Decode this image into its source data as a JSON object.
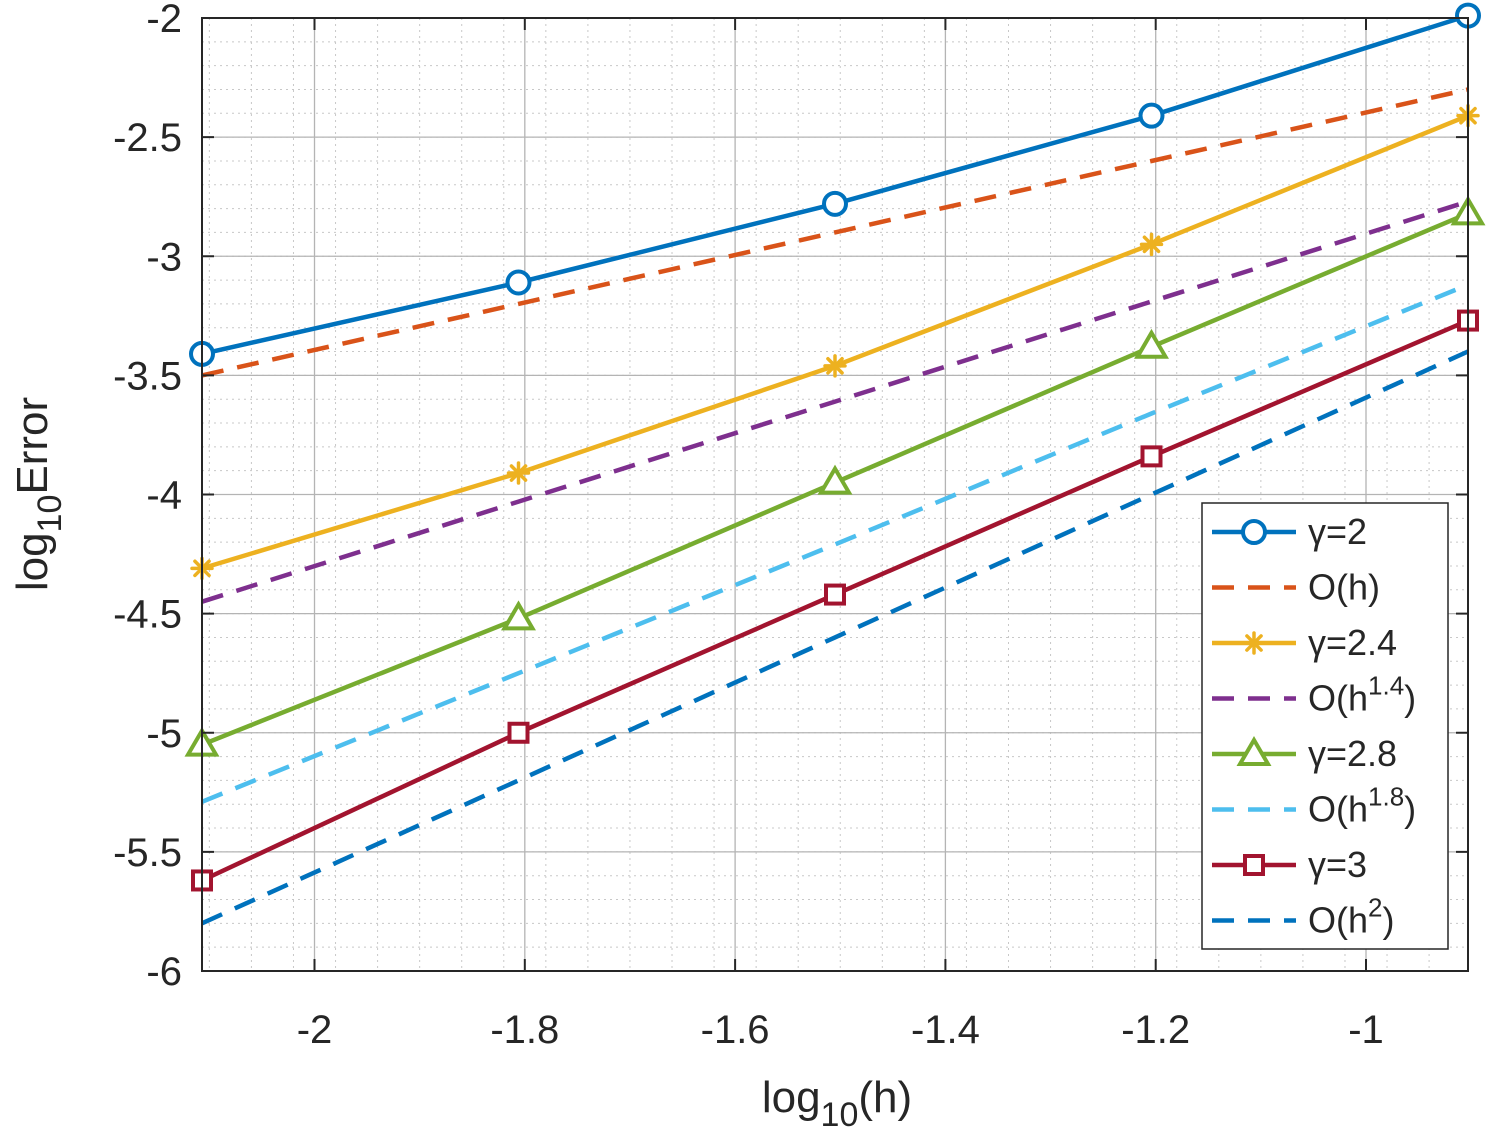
{
  "chart_data": {
    "type": "line",
    "title": "",
    "xlabel": {
      "base": "log",
      "sub": "10",
      "rest": "(h)"
    },
    "ylabel": {
      "base": "log",
      "sub": "10",
      "rest": "Error"
    },
    "xlim": [
      -2.107,
      -0.903
    ],
    "ylim": [
      -6,
      -2
    ],
    "xticks": [
      -2,
      -1.8,
      -1.6,
      -1.4,
      -1.2,
      -1
    ],
    "xtick_labels": [
      "-2",
      "-1.8",
      "-1.6",
      "-1.4",
      "-1.2",
      "-1"
    ],
    "yticks": [
      -6,
      -5.5,
      -5,
      -4.5,
      -4,
      -3.5,
      -3,
      -2.5,
      -2
    ],
    "ytick_labels": [
      "-6",
      "-5.5",
      "-5",
      "-4.5",
      "-4",
      "-3.5",
      "-3",
      "-2.5",
      "-2"
    ],
    "grid": true,
    "minor_grid": true,
    "legend_position": "bottom-right",
    "x": [
      -2.107,
      -1.806,
      -1.505,
      -1.204,
      -0.903
    ],
    "series": [
      {
        "name": "γ=2",
        "label": {
          "main": "γ=2"
        },
        "style": "solid",
        "marker": "circle",
        "color": "#0072BD",
        "values": [
          -3.41,
          -3.11,
          -2.78,
          -2.41,
          -1.99
        ]
      },
      {
        "name": "O(h)",
        "label": {
          "main": "O(h)"
        },
        "style": "dashed",
        "marker": "none",
        "color": "#D95319",
        "values": [
          -3.5,
          -3.2,
          -2.9,
          -2.6,
          -2.3
        ]
      },
      {
        "name": "γ=2.4",
        "label": {
          "main": "γ=2.4"
        },
        "style": "solid",
        "marker": "asterisk",
        "color": "#EDB120",
        "values": [
          -4.31,
          -3.91,
          -3.46,
          -2.95,
          -2.41
        ]
      },
      {
        "name": "O(h^1.4)",
        "label": {
          "main": "O(h",
          "sup": "1.4",
          "end": ")"
        },
        "style": "dashed",
        "marker": "none",
        "color": "#7E2F8E",
        "values": [
          -4.45,
          -4.03,
          -3.61,
          -3.19,
          -2.77
        ]
      },
      {
        "name": "γ=2.8",
        "label": {
          "main": "γ=2.8"
        },
        "style": "solid",
        "marker": "triangle",
        "color": "#77AC30",
        "values": [
          -5.05,
          -4.52,
          -3.95,
          -3.38,
          -2.82
        ]
      },
      {
        "name": "O(h^1.8)",
        "label": {
          "main": "O(h",
          "sup": "1.8",
          "end": ")"
        },
        "style": "dashed",
        "marker": "none",
        "color": "#4DBEEE",
        "values": [
          -5.29,
          -4.75,
          -4.21,
          -3.66,
          -3.12
        ]
      },
      {
        "name": "γ=3",
        "label": {
          "main": "γ=3"
        },
        "style": "solid",
        "marker": "square",
        "color": "#A2142F",
        "values": [
          -5.62,
          -5.0,
          -4.42,
          -3.84,
          -3.27
        ]
      },
      {
        "name": "O(h^2)",
        "label": {
          "main": "O(h",
          "sup": "2",
          "end": ")"
        },
        "style": "dashed",
        "marker": "none",
        "color": "#0072BD",
        "values": [
          -5.8,
          -5.2,
          -4.6,
          -4.0,
          -3.4
        ]
      }
    ]
  }
}
